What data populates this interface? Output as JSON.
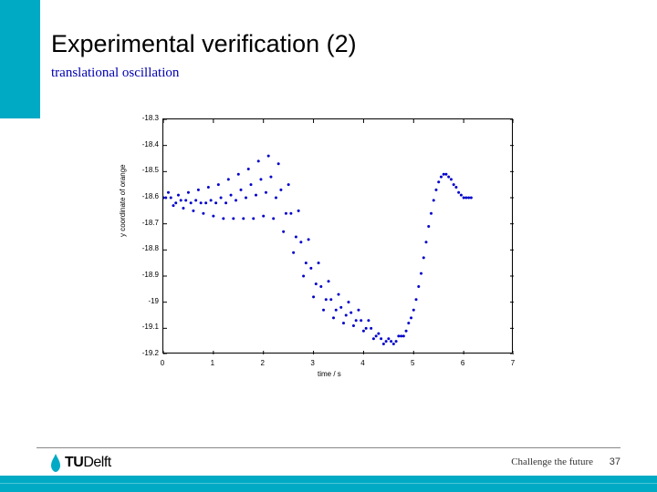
{
  "header": {
    "title": "Experimental verification (2)",
    "subtitle": "translational oscillation"
  },
  "chart": {
    "type": "scatter-line",
    "xlabel": "time / s",
    "ylabel": "y coordinate of orange",
    "xlim": [
      0,
      7
    ],
    "ylim": [
      -19.2,
      -18.3
    ],
    "xtick_step": 1,
    "xticks": [
      0,
      1,
      2,
      3,
      4,
      5,
      6,
      7
    ],
    "yticks": [
      -19.2,
      -19.1,
      -19.0,
      -18.9,
      -18.8,
      -18.7,
      -18.6,
      -18.5,
      -18.4,
      -18.3
    ],
    "ytick_labels": [
      "-19.2",
      "-19.1",
      "-19",
      "-18.9",
      "-18.8",
      "-18.7",
      "-18.6",
      "-18.5",
      "-18.4",
      "-18.3"
    ],
    "background_color": "#ffffff",
    "grid_on": false,
    "line_color": "#0000cc",
    "marker": "dot",
    "marker_size": 1.5,
    "line_width": 0,
    "series": [
      {
        "x": 0.0,
        "y": -18.6
      },
      {
        "x": 0.05,
        "y": -18.6
      },
      {
        "x": 0.1,
        "y": -18.58
      },
      {
        "x": 0.15,
        "y": -18.6
      },
      {
        "x": 0.2,
        "y": -18.63
      },
      {
        "x": 0.25,
        "y": -18.62
      },
      {
        "x": 0.3,
        "y": -18.59
      },
      {
        "x": 0.35,
        "y": -18.61
      },
      {
        "x": 0.4,
        "y": -18.64
      },
      {
        "x": 0.45,
        "y": -18.61
      },
      {
        "x": 0.5,
        "y": -18.58
      },
      {
        "x": 0.55,
        "y": -18.62
      },
      {
        "x": 0.6,
        "y": -18.65
      },
      {
        "x": 0.65,
        "y": -18.61
      },
      {
        "x": 0.7,
        "y": -18.57
      },
      {
        "x": 0.75,
        "y": -18.62
      },
      {
        "x": 0.8,
        "y": -18.66
      },
      {
        "x": 0.85,
        "y": -18.62
      },
      {
        "x": 0.9,
        "y": -18.56
      },
      {
        "x": 0.95,
        "y": -18.61
      },
      {
        "x": 1.0,
        "y": -18.67
      },
      {
        "x": 1.05,
        "y": -18.62
      },
      {
        "x": 1.1,
        "y": -18.55
      },
      {
        "x": 1.15,
        "y": -18.6
      },
      {
        "x": 1.2,
        "y": -18.68
      },
      {
        "x": 1.25,
        "y": -18.62
      },
      {
        "x": 1.3,
        "y": -18.53
      },
      {
        "x": 1.35,
        "y": -18.59
      },
      {
        "x": 1.4,
        "y": -18.68
      },
      {
        "x": 1.45,
        "y": -18.61
      },
      {
        "x": 1.5,
        "y": -18.51
      },
      {
        "x": 1.55,
        "y": -18.57
      },
      {
        "x": 1.6,
        "y": -18.68
      },
      {
        "x": 1.65,
        "y": -18.6
      },
      {
        "x": 1.7,
        "y": -18.49
      },
      {
        "x": 1.75,
        "y": -18.55
      },
      {
        "x": 1.8,
        "y": -18.68
      },
      {
        "x": 1.85,
        "y": -18.59
      },
      {
        "x": 1.9,
        "y": -18.46
      },
      {
        "x": 1.95,
        "y": -18.53
      },
      {
        "x": 2.0,
        "y": -18.67
      },
      {
        "x": 2.05,
        "y": -18.58
      },
      {
        "x": 2.1,
        "y": -18.44
      },
      {
        "x": 2.15,
        "y": -18.52
      },
      {
        "x": 2.2,
        "y": -18.68
      },
      {
        "x": 2.25,
        "y": -18.6
      },
      {
        "x": 2.3,
        "y": -18.47
      },
      {
        "x": 2.35,
        "y": -18.57
      },
      {
        "x": 2.4,
        "y": -18.73
      },
      {
        "x": 2.45,
        "y": -18.66
      },
      {
        "x": 2.5,
        "y": -18.55
      },
      {
        "x": 2.55,
        "y": -18.66
      },
      {
        "x": 2.6,
        "y": -18.81
      },
      {
        "x": 2.65,
        "y": -18.75
      },
      {
        "x": 2.7,
        "y": -18.65
      },
      {
        "x": 2.75,
        "y": -18.77
      },
      {
        "x": 2.8,
        "y": -18.9
      },
      {
        "x": 2.85,
        "y": -18.85
      },
      {
        "x": 2.9,
        "y": -18.76
      },
      {
        "x": 2.95,
        "y": -18.87
      },
      {
        "x": 3.0,
        "y": -18.98
      },
      {
        "x": 3.05,
        "y": -18.93
      },
      {
        "x": 3.1,
        "y": -18.85
      },
      {
        "x": 3.15,
        "y": -18.94
      },
      {
        "x": 3.2,
        "y": -19.03
      },
      {
        "x": 3.25,
        "y": -18.99
      },
      {
        "x": 3.3,
        "y": -18.92
      },
      {
        "x": 3.35,
        "y": -18.99
      },
      {
        "x": 3.4,
        "y": -19.06
      },
      {
        "x": 3.45,
        "y": -19.03
      },
      {
        "x": 3.5,
        "y": -18.97
      },
      {
        "x": 3.55,
        "y": -19.02
      },
      {
        "x": 3.6,
        "y": -19.08
      },
      {
        "x": 3.65,
        "y": -19.05
      },
      {
        "x": 3.7,
        "y": -19.0
      },
      {
        "x": 3.75,
        "y": -19.04
      },
      {
        "x": 3.8,
        "y": -19.09
      },
      {
        "x": 3.85,
        "y": -19.07
      },
      {
        "x": 3.9,
        "y": -19.03
      },
      {
        "x": 3.95,
        "y": -19.07
      },
      {
        "x": 4.0,
        "y": -19.11
      },
      {
        "x": 4.05,
        "y": -19.1
      },
      {
        "x": 4.1,
        "y": -19.07
      },
      {
        "x": 4.15,
        "y": -19.1
      },
      {
        "x": 4.2,
        "y": -19.14
      },
      {
        "x": 4.25,
        "y": -19.13
      },
      {
        "x": 4.3,
        "y": -19.12
      },
      {
        "x": 4.35,
        "y": -19.14
      },
      {
        "x": 4.4,
        "y": -19.16
      },
      {
        "x": 4.45,
        "y": -19.15
      },
      {
        "x": 4.5,
        "y": -19.14
      },
      {
        "x": 4.55,
        "y": -19.15
      },
      {
        "x": 4.6,
        "y": -19.16
      },
      {
        "x": 4.65,
        "y": -19.15
      },
      {
        "x": 4.7,
        "y": -19.13
      },
      {
        "x": 4.75,
        "y": -19.13
      },
      {
        "x": 4.8,
        "y": -19.13
      },
      {
        "x": 4.85,
        "y": -19.11
      },
      {
        "x": 4.9,
        "y": -19.08
      },
      {
        "x": 4.95,
        "y": -19.06
      },
      {
        "x": 5.0,
        "y": -19.03
      },
      {
        "x": 5.05,
        "y": -18.99
      },
      {
        "x": 5.1,
        "y": -18.94
      },
      {
        "x": 5.15,
        "y": -18.89
      },
      {
        "x": 5.2,
        "y": -18.83
      },
      {
        "x": 5.25,
        "y": -18.77
      },
      {
        "x": 5.3,
        "y": -18.71
      },
      {
        "x": 5.35,
        "y": -18.66
      },
      {
        "x": 5.4,
        "y": -18.61
      },
      {
        "x": 5.45,
        "y": -18.57
      },
      {
        "x": 5.5,
        "y": -18.54
      },
      {
        "x": 5.55,
        "y": -18.52
      },
      {
        "x": 5.6,
        "y": -18.51
      },
      {
        "x": 5.65,
        "y": -18.51
      },
      {
        "x": 5.7,
        "y": -18.52
      },
      {
        "x": 5.75,
        "y": -18.53
      },
      {
        "x": 5.8,
        "y": -18.55
      },
      {
        "x": 5.85,
        "y": -18.56
      },
      {
        "x": 5.9,
        "y": -18.58
      },
      {
        "x": 5.95,
        "y": -18.59
      },
      {
        "x": 6.0,
        "y": -18.6
      },
      {
        "x": 6.05,
        "y": -18.6
      },
      {
        "x": 6.1,
        "y": -18.6
      },
      {
        "x": 6.15,
        "y": -18.6
      }
    ]
  },
  "footer": {
    "tagline": "Challenge the future",
    "page": "37",
    "logo_text_bold": "TU",
    "logo_text_rest": "Delft"
  },
  "colors": {
    "accent": "#00aac5",
    "subtitle": "#0000b0",
    "series": "#0000cc"
  }
}
